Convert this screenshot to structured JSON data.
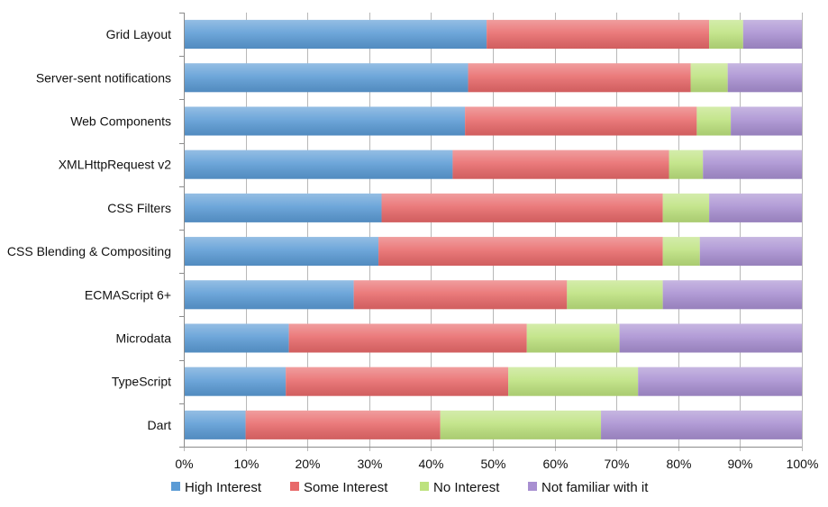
{
  "chart_data": {
    "type": "bar",
    "orientation": "horizontal",
    "stacked": "percent",
    "categories": [
      "Grid Layout",
      "Server-sent notifications",
      "Web Components",
      "XMLHttpRequest v2",
      "CSS Filters",
      "CSS Blending & Compositing",
      "ECMAScript 6+",
      "Microdata",
      "TypeScript",
      "Dart"
    ],
    "series": [
      {
        "name": "High Interest",
        "color": "#5b9bd5",
        "values": [
          49,
          46,
          45.5,
          43.5,
          32,
          31.5,
          27.5,
          17,
          16.5,
          10
        ]
      },
      {
        "name": "Some Interest",
        "color": "#e8696a",
        "values": [
          36,
          36,
          37.5,
          35,
          45.5,
          46,
          34.5,
          38.5,
          36,
          31.5
        ]
      },
      {
        "name": "No Interest",
        "color": "#bde27e",
        "values": [
          5.5,
          6,
          5.5,
          5.5,
          7.5,
          6,
          15.5,
          15,
          21,
          26
        ]
      },
      {
        "name": "Not familiar with it",
        "color": "#a88fd1",
        "values": [
          9.5,
          12,
          11.5,
          16,
          15,
          16.5,
          22.5,
          29.5,
          26.5,
          32.5
        ]
      }
    ],
    "xticks": [
      "0%",
      "10%",
      "20%",
      "30%",
      "40%",
      "50%",
      "60%",
      "70%",
      "80%",
      "90%",
      "100%"
    ],
    "xlim": [
      0,
      100
    ],
    "grid": true,
    "legend_position": "bottom",
    "title": "",
    "xlabel": "",
    "ylabel": ""
  }
}
